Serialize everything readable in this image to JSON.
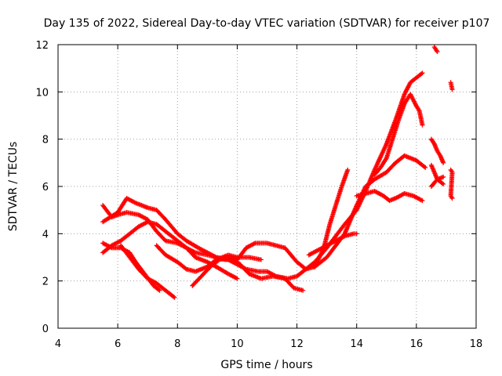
{
  "chart_data": {
    "type": "scatter",
    "title": "Day 135 of 2022, Sidereal Day-to-day VTEC variation (SDTVAR) for receiver p107",
    "xlabel": "GPS time / hours",
    "ylabel": "SDTVAR / TECUs",
    "xlim": [
      4,
      18
    ],
    "ylim": [
      0,
      12
    ],
    "xticks": [
      "4",
      "6",
      "8",
      "10",
      "12",
      "14",
      "16",
      "18"
    ],
    "yticks": [
      "0",
      "2",
      "4",
      "6",
      "8",
      "10",
      "12"
    ],
    "grid": true,
    "marker": "plus",
    "color": "#ff0000",
    "series": [
      {
        "values_xy": [
          [
            5.5,
            4.5
          ],
          [
            6.0,
            4.9
          ],
          [
            6.3,
            5.5
          ],
          [
            6.6,
            5.3
          ],
          [
            7.0,
            5.1
          ],
          [
            7.3,
            5.0
          ],
          [
            7.6,
            4.6
          ],
          [
            8.0,
            4.0
          ],
          [
            8.3,
            3.7
          ],
          [
            8.7,
            3.4
          ],
          [
            9.0,
            3.2
          ],
          [
            9.3,
            3.0
          ],
          [
            9.7,
            2.9
          ],
          [
            10.0,
            2.7
          ],
          [
            10.3,
            2.5
          ],
          [
            10.7,
            2.4
          ],
          [
            11.0,
            2.4
          ],
          [
            11.3,
            2.2
          ],
          [
            11.7,
            2.1
          ],
          [
            12.0,
            2.2
          ],
          [
            12.3,
            2.5
          ],
          [
            12.6,
            2.8
          ],
          [
            13.0,
            3.4
          ],
          [
            13.3,
            3.9
          ],
          [
            13.6,
            4.4
          ],
          [
            14.0,
            5.0
          ],
          [
            14.3,
            5.8
          ],
          [
            14.6,
            6.7
          ],
          [
            15.0,
            7.8
          ],
          [
            15.3,
            8.8
          ],
          [
            15.6,
            9.9
          ],
          [
            15.8,
            10.4
          ],
          [
            16.0,
            10.6
          ],
          [
            16.2,
            10.8
          ]
        ]
      },
      {
        "values_xy": [
          [
            5.5,
            5.2
          ],
          [
            5.8,
            4.7
          ],
          [
            6.0,
            4.8
          ],
          [
            6.3,
            4.9
          ],
          [
            6.7,
            4.8
          ],
          [
            7.0,
            4.6
          ],
          [
            7.3,
            4.1
          ],
          [
            7.6,
            3.7
          ],
          [
            8.0,
            3.6
          ],
          [
            8.3,
            3.4
          ],
          [
            8.6,
            3.0
          ],
          [
            9.0,
            2.8
          ],
          [
            9.3,
            2.6
          ],
          [
            9.7,
            2.3
          ],
          [
            10.0,
            2.1
          ]
        ]
      },
      {
        "values_xy": [
          [
            5.5,
            3.2
          ],
          [
            5.8,
            3.5
          ],
          [
            6.1,
            3.7
          ],
          [
            6.4,
            4.0
          ],
          [
            6.7,
            4.3
          ],
          [
            7.0,
            4.5
          ],
          [
            7.3,
            4.4
          ],
          [
            7.6,
            4.1
          ],
          [
            8.0,
            3.7
          ],
          [
            8.3,
            3.4
          ],
          [
            8.6,
            3.2
          ],
          [
            9.0,
            3.1
          ],
          [
            9.3,
            3.0
          ],
          [
            9.6,
            2.9
          ],
          [
            10.0,
            2.9
          ],
          [
            10.3,
            3.4
          ],
          [
            10.6,
            3.6
          ],
          [
            11.0,
            3.6
          ],
          [
            11.3,
            3.5
          ],
          [
            11.6,
            3.4
          ],
          [
            12.0,
            2.8
          ],
          [
            12.3,
            2.5
          ],
          [
            12.6,
            2.6
          ],
          [
            13.0,
            3.0
          ],
          [
            13.3,
            3.5
          ],
          [
            13.6,
            4.0
          ],
          [
            14.0,
            5.2
          ],
          [
            14.3,
            6.0
          ],
          [
            14.6,
            6.3
          ],
          [
            15.0,
            6.6
          ],
          [
            15.3,
            7.0
          ],
          [
            15.6,
            7.3
          ],
          [
            16.0,
            7.1
          ],
          [
            16.3,
            6.8
          ]
        ]
      },
      {
        "values_xy": [
          [
            5.5,
            3.6
          ],
          [
            5.8,
            3.4
          ],
          [
            6.1,
            3.4
          ],
          [
            6.4,
            3.2
          ],
          [
            6.6,
            2.8
          ],
          [
            6.9,
            2.3
          ],
          [
            7.2,
            1.8
          ],
          [
            7.4,
            1.6
          ]
        ]
      },
      {
        "values_xy": [
          [
            6.1,
            3.5
          ],
          [
            6.4,
            3.0
          ],
          [
            6.7,
            2.5
          ],
          [
            7.0,
            2.1
          ],
          [
            7.3,
            1.9
          ],
          [
            7.6,
            1.6
          ],
          [
            7.9,
            1.3
          ]
        ]
      },
      {
        "values_xy": [
          [
            7.3,
            3.5
          ],
          [
            7.6,
            3.1
          ],
          [
            8.0,
            2.8
          ],
          [
            8.3,
            2.5
          ],
          [
            8.6,
            2.4
          ],
          [
            9.0,
            2.6
          ],
          [
            9.3,
            2.9
          ],
          [
            9.7,
            3.1
          ],
          [
            10.0,
            3.0
          ],
          [
            10.4,
            3.0
          ],
          [
            10.8,
            2.9
          ]
        ]
      },
      {
        "values_xy": [
          [
            8.5,
            1.8
          ],
          [
            8.8,
            2.2
          ],
          [
            9.1,
            2.6
          ],
          [
            9.4,
            2.9
          ],
          [
            9.8,
            3.0
          ],
          [
            10.1,
            2.7
          ],
          [
            10.4,
            2.3
          ],
          [
            10.8,
            2.1
          ],
          [
            11.2,
            2.2
          ],
          [
            11.6,
            2.1
          ],
          [
            11.9,
            1.7
          ],
          [
            12.2,
            1.6
          ]
        ]
      },
      {
        "values_xy": [
          [
            12.4,
            3.1
          ],
          [
            12.7,
            3.3
          ],
          [
            13.0,
            3.5
          ],
          [
            13.3,
            3.7
          ],
          [
            13.6,
            3.9
          ],
          [
            13.9,
            4.0
          ],
          [
            14.0,
            4.0
          ]
        ]
      },
      {
        "values_xy": [
          [
            12.6,
            2.6
          ],
          [
            12.9,
            3.4
          ],
          [
            13.1,
            4.4
          ],
          [
            13.3,
            5.2
          ],
          [
            13.5,
            6.0
          ],
          [
            13.7,
            6.7
          ]
        ]
      },
      {
        "values_xy": [
          [
            14.0,
            5.6
          ],
          [
            14.3,
            5.7
          ],
          [
            14.6,
            5.8
          ],
          [
            14.9,
            5.6
          ],
          [
            15.1,
            5.4
          ],
          [
            15.3,
            5.5
          ],
          [
            15.6,
            5.7
          ],
          [
            15.9,
            5.6
          ],
          [
            16.2,
            5.4
          ]
        ]
      },
      {
        "values_xy": [
          [
            14.6,
            6.5
          ],
          [
            14.8,
            6.8
          ],
          [
            15.0,
            7.2
          ],
          [
            15.2,
            8.0
          ],
          [
            15.4,
            8.8
          ],
          [
            15.6,
            9.5
          ],
          [
            15.8,
            9.9
          ],
          [
            16.0,
            9.4
          ],
          [
            16.1,
            9.2
          ],
          [
            16.2,
            8.6
          ]
        ]
      },
      {
        "values_xy": [
          [
            16.5,
            8.0
          ],
          [
            16.6,
            7.8
          ],
          [
            16.7,
            7.5
          ],
          [
            16.8,
            7.3
          ],
          [
            16.9,
            7.0
          ]
        ]
      },
      {
        "values_xy": [
          [
            16.5,
            6.9
          ],
          [
            16.6,
            6.6
          ],
          [
            16.7,
            6.3
          ],
          [
            16.8,
            6.2
          ],
          [
            16.9,
            6.1
          ]
        ]
      },
      {
        "values_xy": [
          [
            16.5,
            6.0
          ],
          [
            16.7,
            6.3
          ],
          [
            16.9,
            6.4
          ]
        ]
      },
      {
        "values_xy": [
          [
            16.6,
            11.9
          ],
          [
            16.65,
            11.8
          ],
          [
            16.7,
            11.7
          ]
        ]
      },
      {
        "values_xy": [
          [
            17.15,
            10.4
          ],
          [
            17.2,
            10.1
          ],
          [
            17.15,
            6.7
          ],
          [
            17.2,
            6.6
          ],
          [
            17.15,
            5.6
          ],
          [
            17.2,
            5.5
          ]
        ]
      }
    ]
  }
}
